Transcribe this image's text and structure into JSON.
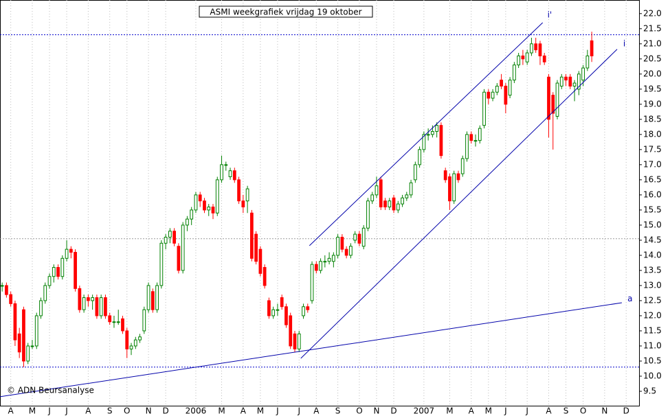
{
  "chart_data": {
    "type": "candlestick",
    "title": "ASMI  weekgrafiek vrijdag 19 oktober",
    "footer": "© ADN Beursanalyse",
    "up_color": "#008000",
    "down_color": "#ff0000",
    "open": [
      13.0,
      13.0,
      12.7,
      12.4,
      11.4,
      12.2,
      10.5,
      11.0,
      11.0,
      12.0,
      12.5,
      13.0,
      13.3,
      13.6,
      13.3,
      13.9,
      14.2,
      14.1,
      12.9,
      12.2,
      12.6,
      12.5,
      12.6,
      12.0,
      12.6,
      12.0,
      11.8,
      11.8,
      11.9,
      11.5,
      10.9,
      11.0,
      11.2,
      11.5,
      12.2,
      12.8,
      12.2,
      13.0,
      14.4,
      14.6,
      14.8,
      14.3,
      13.5,
      15.0,
      15.2,
      15.5,
      16.0,
      15.8,
      15.5,
      15.6,
      15.4,
      16.5,
      17.0,
      16.6,
      16.8,
      16.5,
      15.8,
      15.8,
      15.4,
      14.7,
      14.2,
      13.6,
      12.5,
      12.0,
      12.2,
      12.6,
      12.3,
      12.0,
      11.4,
      10.9,
      12.0,
      12.3,
      12.5,
      13.7,
      13.5,
      13.8,
      13.8,
      13.8,
      14.0,
      14.6,
      14.2,
      14.0,
      14.5,
      14.7,
      14.3,
      14.9,
      15.8,
      16.0,
      16.5,
      15.8,
      15.6,
      15.9,
      15.5,
      15.7,
      15.9,
      16.0,
      16.5,
      17.0,
      17.5,
      18.0,
      18.0,
      18.1,
      18.3,
      16.8,
      16.6,
      15.8,
      16.7,
      16.7,
      17.2,
      18.0,
      17.8,
      17.8,
      18.3,
      19.4,
      19.2,
      19.4,
      19.8,
      19.6,
      19.3,
      19.8,
      20.3,
      20.6,
      20.4,
      20.7,
      21.0,
      21.0,
      20.6,
      19.9,
      19.3,
      18.6,
      19.6,
      19.9,
      19.9,
      19.6,
      19.5,
      19.8,
      20.2,
      21.1
    ],
    "high": [
      13.1,
      13.1,
      12.8,
      12.5,
      11.6,
      12.3,
      11.1,
      11.2,
      12.1,
      12.6,
      13.1,
      13.4,
      13.7,
      13.7,
      14.0,
      14.5,
      14.3,
      14.2,
      13.0,
      12.7,
      12.7,
      12.7,
      12.7,
      12.7,
      12.7,
      12.1,
      12.0,
      12.2,
      12.0,
      11.6,
      11.1,
      11.3,
      11.4,
      12.3,
      13.1,
      12.9,
      13.1,
      14.5,
      14.7,
      14.9,
      14.9,
      14.4,
      15.1,
      15.3,
      15.6,
      16.1,
      16.1,
      15.9,
      15.7,
      15.7,
      16.6,
      17.3,
      17.1,
      16.9,
      16.9,
      16.6,
      16.0,
      16.3,
      15.5,
      14.8,
      14.3,
      13.7,
      12.6,
      12.3,
      12.4,
      12.7,
      12.4,
      12.1,
      11.5,
      11.5,
      12.4,
      12.4,
      13.8,
      13.8,
      13.9,
      14.0,
      14.1,
      14.1,
      14.7,
      14.7,
      14.3,
      14.4,
      14.8,
      14.8,
      15.0,
      15.9,
      16.1,
      16.6,
      16.6,
      15.9,
      15.9,
      16.0,
      15.8,
      16.0,
      16.1,
      16.5,
      17.1,
      17.6,
      18.1,
      18.2,
      18.3,
      18.4,
      18.4,
      16.9,
      16.7,
      16.8,
      16.8,
      17.3,
      18.1,
      18.1,
      18.0,
      18.3,
      19.5,
      19.5,
      19.5,
      19.7,
      20.0,
      19.7,
      19.9,
      20.4,
      20.7,
      20.8,
      20.8,
      21.2,
      21.2,
      21.1,
      20.7,
      20.0,
      19.4,
      19.8,
      20.0,
      20.0,
      20.0,
      19.8,
      20.1,
      20.3,
      20.8,
      21.4
    ],
    "low": [
      12.8,
      12.6,
      12.3,
      11.0,
      10.6,
      10.3,
      10.4,
      10.9,
      10.9,
      11.9,
      12.4,
      12.9,
      13.1,
      13.2,
      13.2,
      13.8,
      13.9,
      12.8,
      12.1,
      12.1,
      12.3,
      12.2,
      11.9,
      11.9,
      11.9,
      11.7,
      11.6,
      11.7,
      11.4,
      10.6,
      10.7,
      10.9,
      11.1,
      11.4,
      12.1,
      12.1,
      12.1,
      12.9,
      14.2,
      14.4,
      14.3,
      13.4,
      13.4,
      14.8,
      15.0,
      15.4,
      15.6,
      15.4,
      15.3,
      15.2,
      15.3,
      16.4,
      16.8,
      16.5,
      16.4,
      15.7,
      15.4,
      15.4,
      13.8,
      13.7,
      13.3,
      12.9,
      11.9,
      11.9,
      12.0,
      12.2,
      11.6,
      10.9,
      10.8,
      10.8,
      11.9,
      12.1,
      12.4,
      13.4,
      13.4,
      13.6,
      13.7,
      13.6,
      13.9,
      14.1,
      13.9,
      13.9,
      14.4,
      14.3,
      14.2,
      14.8,
      15.7,
      15.9,
      15.5,
      15.5,
      15.5,
      15.4,
      15.4,
      15.6,
      15.8,
      15.9,
      16.4,
      16.9,
      17.4,
      17.8,
      17.9,
      17.9,
      17.2,
      16.4,
      15.5,
      15.7,
      16.4,
      16.6,
      17.1,
      17.7,
      17.6,
      17.7,
      18.2,
      19.0,
      19.1,
      19.3,
      19.5,
      18.7,
      19.2,
      19.7,
      20.2,
      20.3,
      20.3,
      20.6,
      20.7,
      20.3,
      20.3,
      17.9,
      17.5,
      18.5,
      19.5,
      19.6,
      19.5,
      19.1,
      19.3,
      19.6,
      20.1,
      20.4
    ],
    "close": [
      13.0,
      12.7,
      12.4,
      11.2,
      10.8,
      10.5,
      11.0,
      11.0,
      12.0,
      12.5,
      13.0,
      13.3,
      13.6,
      13.3,
      13.9,
      14.2,
      14.1,
      12.9,
      12.2,
      12.6,
      12.5,
      12.6,
      12.0,
      12.6,
      12.0,
      11.8,
      11.8,
      11.8,
      11.5,
      10.9,
      11.0,
      11.2,
      11.3,
      12.2,
      13.0,
      12.2,
      13.0,
      14.4,
      14.6,
      14.8,
      14.4,
      13.5,
      15.0,
      15.2,
      15.5,
      16.0,
      15.8,
      15.5,
      15.6,
      15.4,
      16.5,
      17.0,
      17.0,
      16.8,
      16.5,
      15.8,
      15.6,
      16.2,
      13.9,
      13.8,
      13.4,
      13.0,
      12.0,
      12.2,
      12.2,
      12.3,
      11.7,
      11.0,
      10.9,
      11.4,
      12.3,
      12.2,
      13.7,
      13.5,
      13.8,
      13.8,
      13.9,
      14.0,
      14.6,
      14.2,
      14.0,
      14.3,
      14.7,
      14.4,
      14.9,
      15.8,
      16.0,
      16.3,
      15.6,
      15.6,
      15.8,
      15.5,
      15.7,
      15.9,
      16.0,
      16.4,
      17.0,
      17.5,
      18.0,
      18.0,
      18.1,
      18.3,
      17.3,
      16.5,
      15.8,
      16.7,
      16.5,
      17.2,
      18.0,
      17.8,
      17.8,
      18.2,
      19.4,
      19.2,
      19.4,
      19.6,
      19.6,
      19.0,
      19.8,
      20.3,
      20.6,
      20.5,
      20.7,
      21.0,
      20.8,
      20.6,
      20.4,
      18.5,
      18.7,
      19.7,
      19.9,
      19.8,
      19.6,
      19.7,
      20.0,
      20.2,
      20.6,
      20.6
    ],
    "xlim": [
      -0.5,
      148
    ],
    "xticks": [
      {
        "value": 2,
        "label": "A"
      },
      {
        "value": 7,
        "label": "M"
      },
      {
        "value": 11,
        "label": "J"
      },
      {
        "value": 15,
        "label": "J"
      },
      {
        "value": 20,
        "label": "A"
      },
      {
        "value": 25,
        "label": "S"
      },
      {
        "value": 29,
        "label": "O"
      },
      {
        "value": 34,
        "label": "N"
      },
      {
        "value": 38,
        "label": "D"
      },
      {
        "value": 45,
        "label": "2006"
      },
      {
        "value": 51,
        "label": "M"
      },
      {
        "value": 56,
        "label": "A"
      },
      {
        "value": 60,
        "label": "M"
      },
      {
        "value": 64,
        "label": "J"
      },
      {
        "value": 69,
        "label": "J"
      },
      {
        "value": 73,
        "label": "A"
      },
      {
        "value": 78,
        "label": "S"
      },
      {
        "value": 83,
        "label": "O"
      },
      {
        "value": 87,
        "label": "N"
      },
      {
        "value": 91,
        "label": "D"
      },
      {
        "value": 98,
        "label": "2007"
      },
      {
        "value": 104,
        "label": "M"
      },
      {
        "value": 109,
        "label": "A"
      },
      {
        "value": 113,
        "label": "M"
      },
      {
        "value": 117,
        "label": "J"
      },
      {
        "value": 122,
        "label": "J"
      },
      {
        "value": 127,
        "label": "A"
      },
      {
        "value": 131,
        "label": "S"
      },
      {
        "value": 135,
        "label": "O"
      },
      {
        "value": 140,
        "label": "N"
      },
      {
        "value": 145,
        "label": "D"
      }
    ],
    "ylim": [
      9.0,
      22.45
    ],
    "yticks": [
      9.5,
      {
        "value": 10,
        "label": "10.0"
      },
      10.5,
      {
        "value": 11,
        "label": "11.0"
      },
      11.5,
      {
        "value": 12,
        "label": "12.0"
      },
      12.5,
      {
        "value": 13,
        "label": "13.0"
      },
      13.5,
      {
        "value": 14,
        "label": "14.0"
      },
      14.5,
      {
        "value": 15,
        "label": "15.0"
      },
      15.5,
      {
        "value": 16,
        "label": "16.0"
      },
      16.5,
      {
        "value": 17,
        "label": "17.0"
      },
      17.5,
      {
        "value": 18,
        "label": "18.0"
      },
      18.5,
      {
        "value": 19,
        "label": "19.0"
      },
      19.5,
      {
        "value": 20,
        "label": "20.0"
      },
      20.5,
      {
        "value": 21,
        "label": "21.0"
      },
      21.5,
      {
        "value": 22,
        "label": "22.0"
      }
    ],
    "hlines": [
      {
        "value": 10.3,
        "color": "#0000cc"
      },
      {
        "value": 21.3,
        "color": "#0000cc"
      },
      {
        "value": 14.55,
        "color": "#999999"
      }
    ],
    "trendlines": [
      {
        "label": "a",
        "from": [
          -0.5,
          9.32
        ],
        "to": [
          144.0,
          12.43
        ],
        "label_at": [
          145.3,
          12.55
        ]
      },
      {
        "label": "i",
        "from": [
          69.4,
          10.59
        ],
        "to": [
          142.9,
          20.82
        ],
        "label_at": [
          144.3,
          21.0
        ]
      },
      {
        "label": "i'",
        "from": [
          71.4,
          14.32
        ],
        "to": [
          125.6,
          21.7
        ],
        "label_at": [
          126.7,
          21.95
        ]
      }
    ]
  }
}
